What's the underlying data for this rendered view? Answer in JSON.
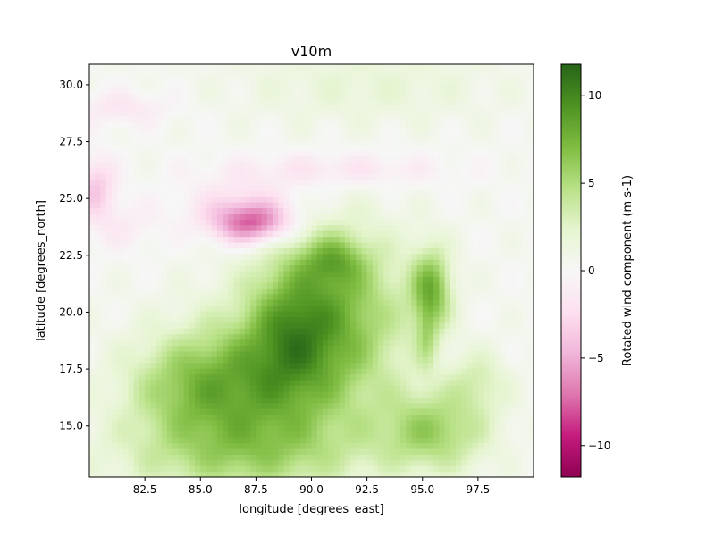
{
  "chart_data": {
    "type": "heatmap",
    "title": "v10m",
    "xlabel": "longitude [degrees_east]",
    "ylabel": "latitude [degrees_north]",
    "xlim": [
      80.0,
      100.0
    ],
    "ylim": [
      12.75,
      30.9
    ],
    "xticks": [
      82.5,
      85.0,
      87.5,
      90.0,
      92.5,
      95.0,
      97.5
    ],
    "xtick_labels": [
      "82.5",
      "85.0",
      "87.5",
      "90.0",
      "92.5",
      "95.0",
      "97.5"
    ],
    "yticks": [
      15.0,
      17.5,
      20.0,
      22.5,
      25.0,
      27.5,
      30.0
    ],
    "ytick_labels": [
      "15.0",
      "17.5",
      "20.0",
      "22.5",
      "25.0",
      "27.5",
      "30.0"
    ],
    "colorbar": {
      "label": "Rotated wind component (m s-1)",
      "colormap": "PiYG",
      "vmin": -11.8,
      "vmax": 11.8,
      "ticks": [
        -10,
        -5,
        0,
        5,
        10
      ],
      "tick_labels": [
        "−10",
        "−5",
        "0",
        "5",
        "10"
      ]
    },
    "grid": false,
    "features": [
      {
        "type": "blob",
        "lon": 90.8,
        "lat": 20.2,
        "rx": 3.0,
        "ry": 3.2,
        "amp": 6.5
      },
      {
        "type": "blob",
        "lon": 91.0,
        "lat": 22.3,
        "rx": 1.2,
        "ry": 0.9,
        "amp": 3.5
      },
      {
        "type": "blob",
        "lon": 87.5,
        "lat": 17.0,
        "rx": 4.0,
        "ry": 2.5,
        "amp": 5.5
      },
      {
        "type": "blob",
        "lon": 84.5,
        "lat": 16.8,
        "rx": 2.5,
        "ry": 1.8,
        "amp": 3.0
      },
      {
        "type": "blob",
        "lon": 87.0,
        "lat": 13.8,
        "rx": 5.0,
        "ry": 1.8,
        "amp": 4.5
      },
      {
        "type": "blob",
        "lon": 95.5,
        "lat": 14.8,
        "rx": 2.2,
        "ry": 1.6,
        "amp": 5.0
      },
      {
        "type": "blob",
        "lon": 95.4,
        "lat": 21.0,
        "rx": 0.8,
        "ry": 1.6,
        "amp": 6.5
      },
      {
        "type": "blob",
        "lon": 95.2,
        "lat": 18.8,
        "rx": 0.4,
        "ry": 1.2,
        "amp": 2.5
      },
      {
        "type": "blob",
        "lon": 89.0,
        "lat": 19.2,
        "rx": 1.6,
        "ry": 2.4,
        "amp": 3.0
      },
      {
        "type": "blob",
        "lon": 97.5,
        "lat": 17.0,
        "rx": 1.2,
        "ry": 1.2,
        "amp": 2.5
      },
      {
        "type": "blob",
        "lon": 92.5,
        "lat": 30.0,
        "rx": 5.0,
        "ry": 1.5,
        "amp": 1.5
      },
      {
        "type": "blob",
        "lon": 87.3,
        "lat": 23.9,
        "rx": 1.6,
        "ry": 0.8,
        "amp": -7.5
      },
      {
        "type": "blob",
        "lon": 87.0,
        "lat": 24.8,
        "rx": 2.5,
        "ry": 1.0,
        "amp": -2.5
      },
      {
        "type": "blob",
        "lon": 80.3,
        "lat": 25.5,
        "rx": 0.8,
        "ry": 1.2,
        "amp": -4.0
      },
      {
        "type": "blob",
        "lon": 91.0,
        "lat": 26.3,
        "rx": 4.5,
        "ry": 0.7,
        "amp": -2.2
      },
      {
        "type": "blob",
        "lon": 81.5,
        "lat": 29.0,
        "rx": 2.0,
        "ry": 0.7,
        "amp": -2.0
      },
      {
        "type": "blob",
        "lon": 81.5,
        "lat": 23.8,
        "rx": 1.5,
        "ry": 1.0,
        "amp": -1.5
      }
    ]
  }
}
